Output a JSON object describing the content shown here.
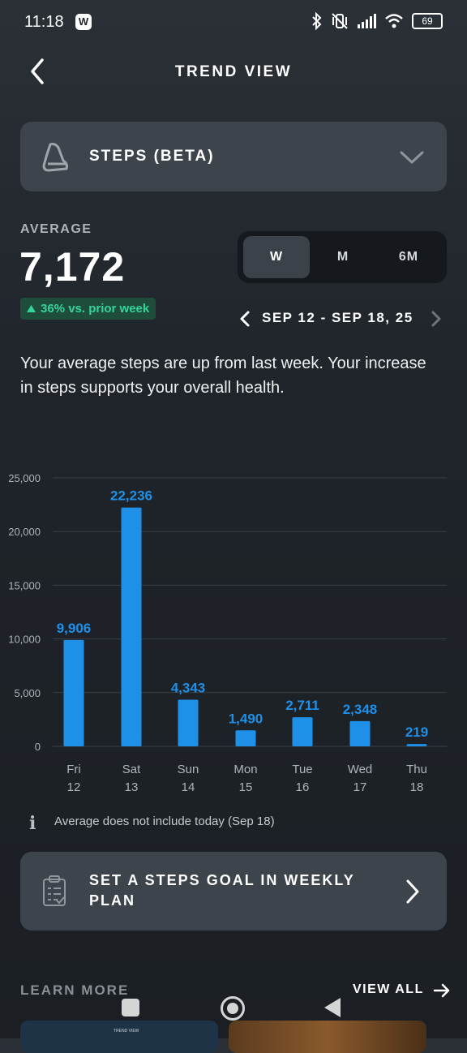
{
  "status_bar": {
    "time": "11:18",
    "app_badge": "W",
    "battery": "69"
  },
  "header": {
    "title": "TREND VIEW"
  },
  "metric": {
    "label": "STEPS (BETA)"
  },
  "average": {
    "label": "AVERAGE",
    "value": "7,172",
    "delta": "36% vs. prior week"
  },
  "period": {
    "options": [
      "W",
      "M",
      "6M"
    ],
    "selected": "W"
  },
  "date_range": "SEP 12 - SEP 18, 25",
  "description": "Your average steps are up from last week. Your increase in steps supports your overall health.",
  "chart_data": {
    "type": "bar",
    "categories": [
      "Fri 12",
      "Sat 13",
      "Sun 14",
      "Mon 15",
      "Tue 16",
      "Wed 17",
      "Thu 18"
    ],
    "category_days": [
      "Fri",
      "Sat",
      "Sun",
      "Mon",
      "Tue",
      "Wed",
      "Thu"
    ],
    "category_dates": [
      "12",
      "13",
      "14",
      "15",
      "16",
      "17",
      "18"
    ],
    "values": [
      9906,
      22236,
      4343,
      1490,
      2711,
      2348,
      219
    ],
    "value_labels": [
      "9,906",
      "22,236",
      "4,343",
      "1,490",
      "2,711",
      "2,348",
      "219"
    ],
    "yticks": [
      "0",
      "5,000",
      "10,000",
      "15,000",
      "20,000",
      "25,000"
    ],
    "ylim": [
      0,
      25000
    ],
    "grid": true,
    "bar_color": "#1e90e8"
  },
  "note": "Average does not include today (Sep 18)",
  "goal_card": {
    "label": "SET A STEPS GOAL IN WEEKLY PLAN"
  },
  "learn_more": {
    "title": "LEARN MORE",
    "view_all": "VIEW ALL",
    "thumb1_caption": "TREND VIEW"
  },
  "colors": {
    "accent": "#1e90e8",
    "positive": "#36d49a",
    "card": "#3d444b"
  }
}
